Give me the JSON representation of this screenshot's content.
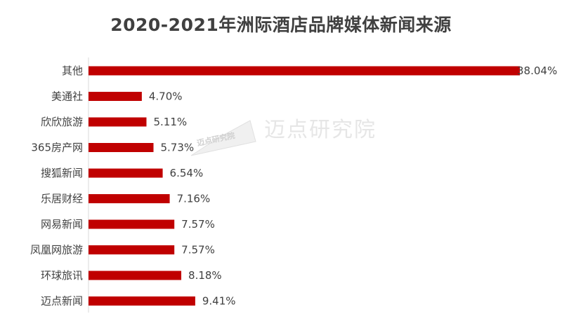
{
  "watermark": {
    "text": "迈点研究院",
    "logo_text": "迈点研究院"
  },
  "chart_data": {
    "type": "bar",
    "orientation": "horizontal",
    "title": "2020-2021年洲际酒店品牌媒体新闻来源",
    "categories": [
      "其他",
      "美通社",
      "欣欣旅游",
      "365房产网",
      "搜狐新闻",
      "乐居财经",
      "网易新闻",
      "凤凰网旅游",
      "环球旅讯",
      "迈点新闻"
    ],
    "values": [
      38.04,
      4.7,
      5.11,
      5.73,
      6.54,
      7.16,
      7.57,
      7.57,
      8.18,
      9.41
    ],
    "value_labels": [
      "38.04%",
      "4.70%",
      "5.11%",
      "5.73%",
      "6.54%",
      "7.16%",
      "7.57%",
      "7.57%",
      "8.18%",
      "9.41%"
    ],
    "unit": "%",
    "xlim": [
      0,
      40
    ],
    "grid": false,
    "legend": "none",
    "bar_color": "#c00000"
  }
}
